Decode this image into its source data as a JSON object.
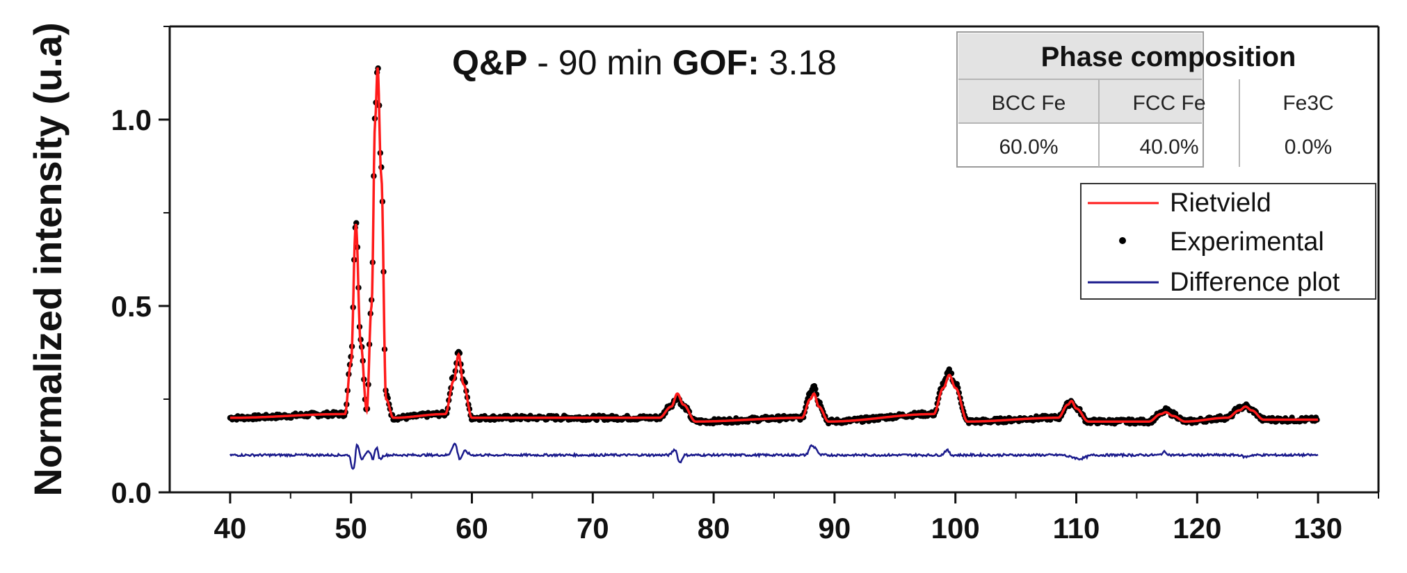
{
  "title": {
    "sample_bold": "Q&P",
    "sample_rest": " - 90 min ",
    "gof_label": "GOF:",
    "gof_value": " 3.18"
  },
  "chart_data": {
    "type": "line",
    "xlabel": "",
    "ylabel": "Normalized intensity (u.a)",
    "xlim": [
      35,
      135
    ],
    "ylim": [
      0,
      1.25
    ],
    "x_ticks": [
      40,
      50,
      60,
      70,
      80,
      90,
      100,
      110,
      120,
      130
    ],
    "y_ticks": [
      0.0,
      0.5,
      1.0
    ],
    "y_tick_labels": [
      "0.0",
      "0.5",
      "1.0"
    ],
    "grid": false,
    "legend_position": "top-right",
    "colors": {
      "rietveld": "#ff1a1a",
      "experimental": "#000000",
      "difference": "#1a1a8c"
    },
    "series": [
      {
        "name": "Rietvield",
        "style": "line",
        "x": [
          40,
          49.5,
          50.0,
          50.4,
          50.8,
          51.3,
          51.7,
          52.0,
          52.2,
          52.5,
          52.9,
          53.5,
          57.8,
          58.5,
          58.9,
          59.3,
          60.0,
          75.5,
          76.5,
          77.0,
          77.5,
          78.5,
          87.3,
          88.0,
          88.3,
          88.7,
          89.5,
          98.2,
          99.0,
          99.5,
          100.0,
          101.0,
          108.5,
          109.3,
          109.6,
          110.0,
          111.0,
          116.0,
          117.0,
          117.4,
          118.0,
          119.0,
          122.5,
          123.5,
          124.0,
          124.5,
          125.5,
          130
        ],
        "y": [
          0.2,
          0.21,
          0.35,
          0.72,
          0.4,
          0.22,
          0.5,
          1.0,
          1.14,
          0.85,
          0.25,
          0.2,
          0.21,
          0.3,
          0.37,
          0.29,
          0.2,
          0.2,
          0.23,
          0.265,
          0.235,
          0.19,
          0.2,
          0.25,
          0.265,
          0.23,
          0.19,
          0.21,
          0.28,
          0.315,
          0.28,
          0.19,
          0.2,
          0.235,
          0.245,
          0.225,
          0.19,
          0.19,
          0.21,
          0.215,
          0.205,
          0.19,
          0.2,
          0.22,
          0.23,
          0.22,
          0.195,
          0.195
        ]
      },
      {
        "name": "Experimental",
        "style": "points",
        "x": [
          40,
          49.5,
          50.0,
          50.4,
          50.8,
          51.3,
          51.7,
          52.0,
          52.2,
          52.5,
          52.9,
          53.5,
          57.8,
          58.5,
          58.9,
          59.3,
          60.0,
          75.5,
          76.5,
          77.0,
          77.5,
          78.5,
          87.3,
          88.0,
          88.3,
          88.7,
          89.5,
          98.2,
          99.0,
          99.5,
          100.0,
          101.0,
          108.5,
          109.3,
          109.6,
          110.0,
          111.0,
          116.0,
          117.0,
          117.4,
          118.0,
          119.0,
          122.5,
          123.5,
          124.0,
          124.5,
          125.5,
          130
        ],
        "y": [
          0.2,
          0.21,
          0.36,
          0.73,
          0.41,
          0.22,
          0.52,
          1.02,
          1.15,
          0.87,
          0.26,
          0.2,
          0.21,
          0.31,
          0.38,
          0.3,
          0.2,
          0.2,
          0.235,
          0.255,
          0.23,
          0.19,
          0.2,
          0.27,
          0.29,
          0.24,
          0.19,
          0.21,
          0.29,
          0.325,
          0.29,
          0.19,
          0.2,
          0.235,
          0.245,
          0.225,
          0.19,
          0.19,
          0.21,
          0.22,
          0.21,
          0.19,
          0.2,
          0.225,
          0.232,
          0.22,
          0.195,
          0.195
        ]
      },
      {
        "name": "Difference plot",
        "style": "line",
        "x": [
          40,
          49.8,
          50.2,
          50.5,
          50.9,
          51.5,
          51.8,
          52.1,
          52.4,
          52.8,
          53.5,
          58.0,
          58.6,
          59.0,
          59.4,
          60.0,
          76.3,
          76.8,
          77.2,
          77.6,
          78.3,
          87.6,
          88.1,
          88.4,
          88.8,
          89.5,
          98.8,
          99.3,
          99.7,
          100.5,
          108.8,
          109.6,
          110.2,
          111.5,
          116.8,
          117.3,
          117.8,
          123.4,
          124.0,
          124.6,
          130
        ],
        "y": [
          0.1,
          0.1,
          0.06,
          0.13,
          0.09,
          0.11,
          0.09,
          0.12,
          0.09,
          0.1,
          0.1,
          0.1,
          0.13,
          0.09,
          0.11,
          0.1,
          0.1,
          0.115,
          0.08,
          0.1,
          0.1,
          0.1,
          0.125,
          0.12,
          0.1,
          0.1,
          0.1,
          0.113,
          0.1,
          0.1,
          0.1,
          0.095,
          0.09,
          0.1,
          0.1,
          0.108,
          0.1,
          0.1,
          0.095,
          0.1,
          0.1
        ]
      }
    ]
  },
  "legend": {
    "items": [
      {
        "label": "Rietvield",
        "marker": "line",
        "color": "#ff1a1a"
      },
      {
        "label": "Experimental",
        "marker": "dot",
        "color": "#000000"
      },
      {
        "label": "Difference plot",
        "marker": "line",
        "color": "#1a1a8c"
      }
    ]
  },
  "phase_table": {
    "header": "Phase composition",
    "columns": [
      "BCC Fe",
      "FCC Fe",
      "Fe3C"
    ],
    "values": [
      "60.0%",
      "40.0%",
      "0.0%"
    ]
  }
}
